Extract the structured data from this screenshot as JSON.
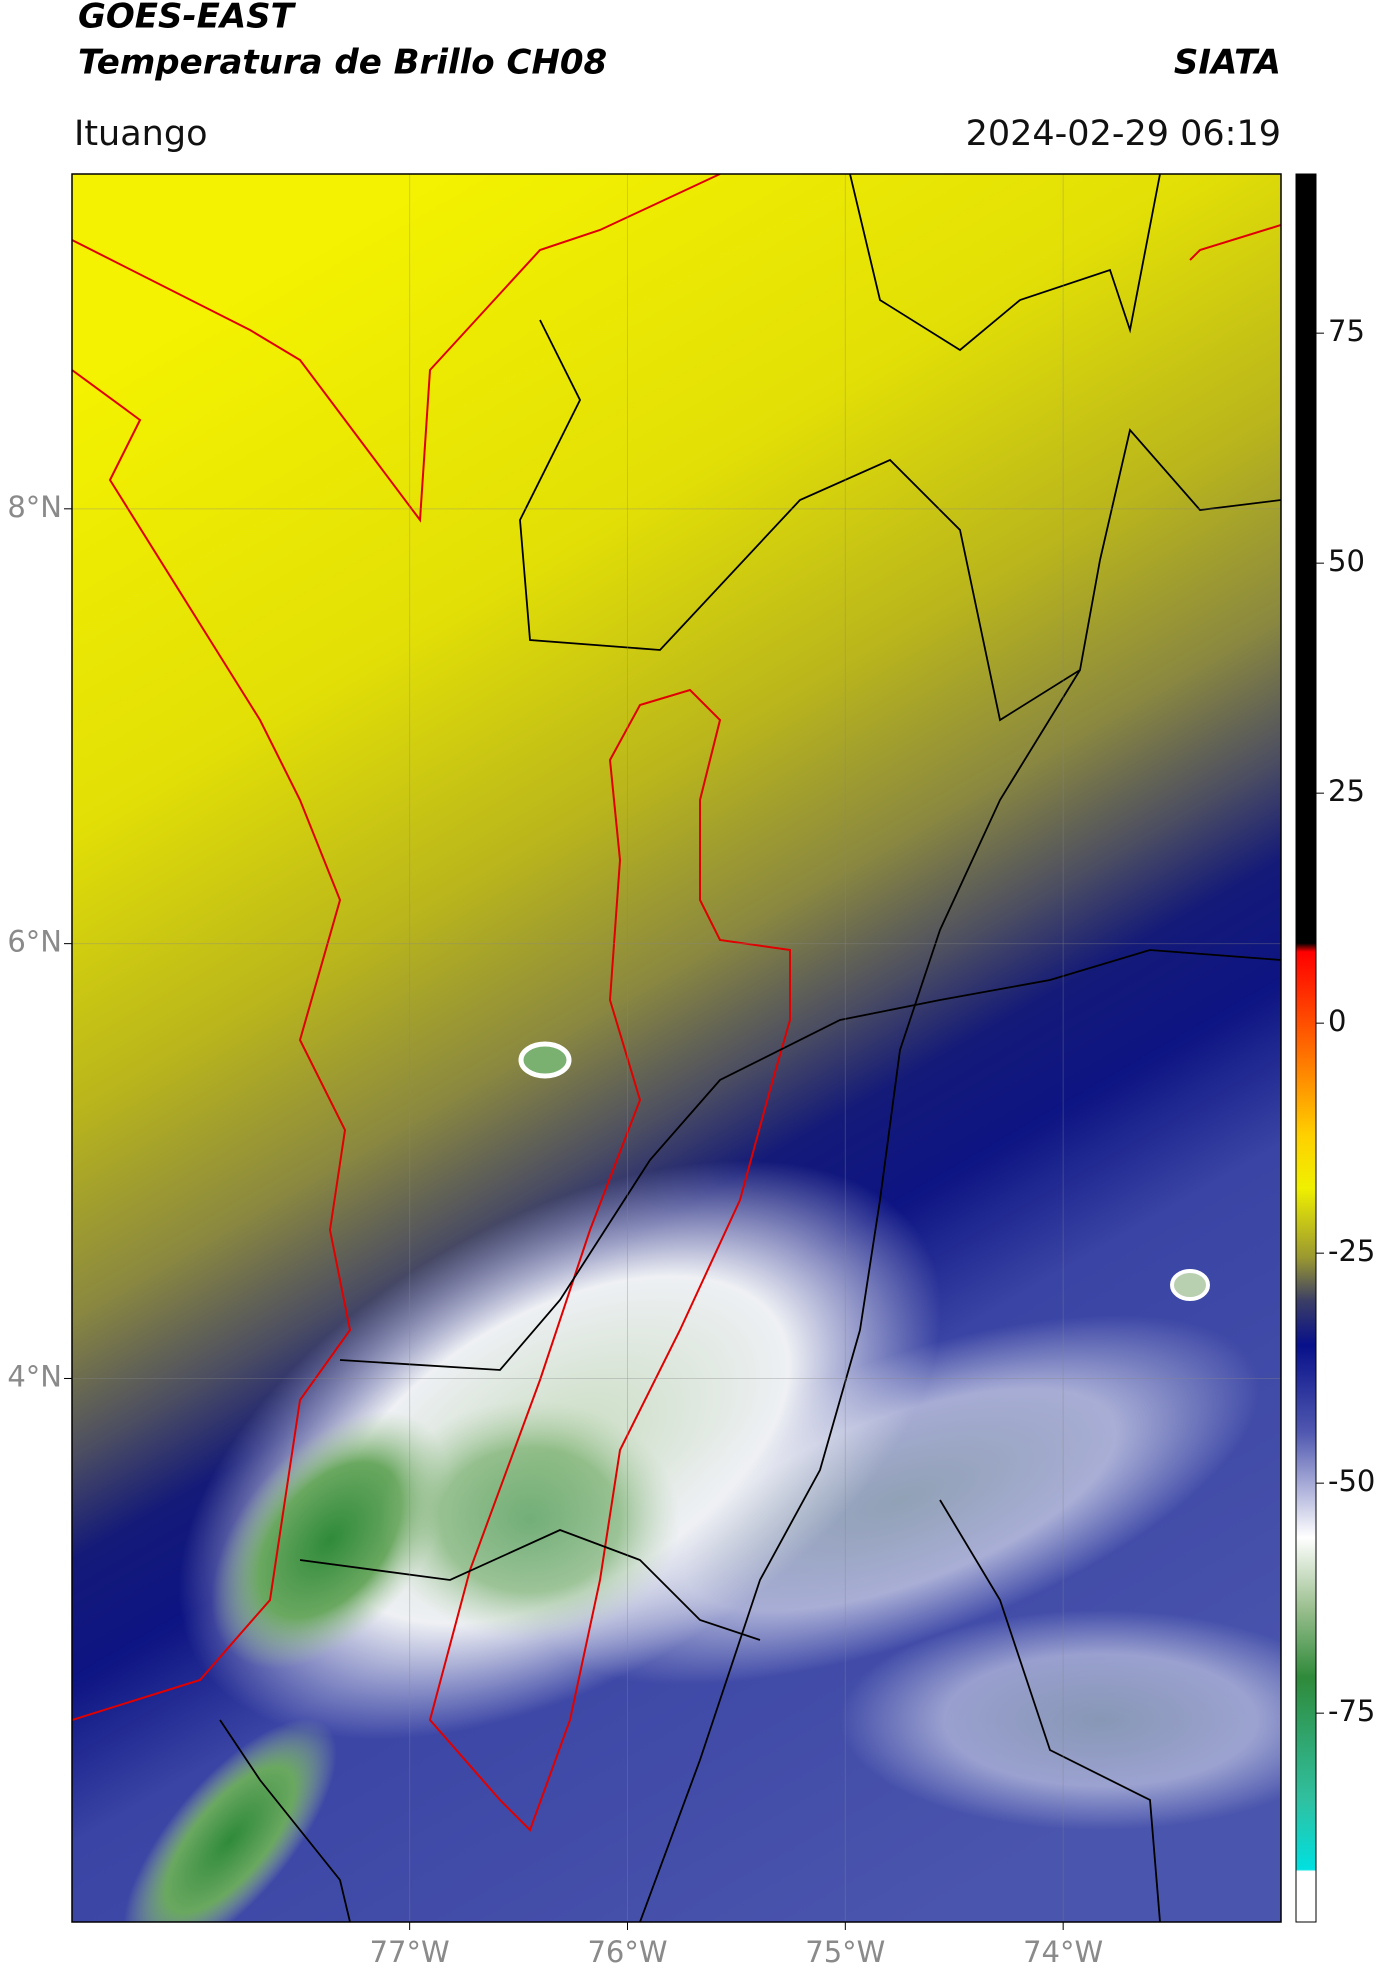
{
  "header": {
    "title_line1": "GOES-EAST",
    "title_line2": "Temperatura de Brillo CH08",
    "source": "SIATA",
    "location": "Ituango",
    "datetime": "2024-02-29 06:19"
  },
  "map": {
    "lonlim": [
      -78.55,
      -73.0
    ],
    "latlim": [
      1.5,
      9.54
    ],
    "xticks": [
      {
        "value": -77,
        "label": "77°W"
      },
      {
        "value": -76,
        "label": "76°W"
      },
      {
        "value": -75,
        "label": "75°W"
      },
      {
        "value": -74,
        "label": "74°W"
      }
    ],
    "yticks": [
      {
        "value": 8,
        "label": "8°N"
      },
      {
        "value": 6,
        "label": "6°N"
      },
      {
        "value": 4,
        "label": "4°N"
      }
    ],
    "grid": true
  },
  "colorbar": {
    "lim": [
      -97.7,
      92.3
    ],
    "ticks": [
      75,
      50,
      25,
      0,
      -25,
      -50,
      -75
    ]
  }
}
